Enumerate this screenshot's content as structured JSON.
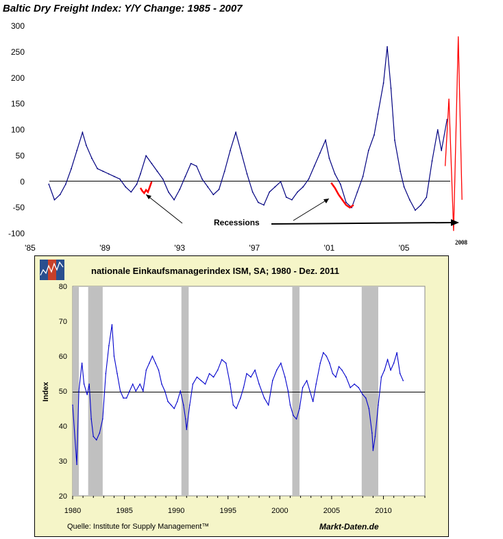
{
  "chart_data": [
    {
      "type": "line",
      "title": "Baltic Dry Freight Index: Y/Y Change: 1985 - 2007",
      "xlabel": "",
      "ylabel": "",
      "ylim": [
        -100,
        300
      ],
      "xlim": [
        1985,
        2007.8
      ],
      "yticks": [
        "300",
        "250",
        "200",
        "150",
        "100",
        "50",
        "0",
        "-50",
        "-100"
      ],
      "xticks": [
        "'85",
        "'89",
        "'93",
        "'97",
        "'01",
        "'05"
      ],
      "series": [
        {
          "name": "Y/Y Change",
          "color": "#000080",
          "x": [
            1986.0,
            1986.3,
            1986.6,
            1986.9,
            1987.2,
            1987.5,
            1987.8,
            1988.0,
            1988.3,
            1988.6,
            1988.9,
            1989.2,
            1989.5,
            1989.8,
            1990.1,
            1990.4,
            1990.7,
            1990.9,
            1991.2,
            1991.5,
            1991.8,
            1992.1,
            1992.4,
            1992.7,
            1993.0,
            1993.3,
            1993.6,
            1993.9,
            1994.2,
            1994.5,
            1994.8,
            1995.1,
            1995.4,
            1995.7,
            1996.0,
            1996.3,
            1996.6,
            1996.9,
            1997.2,
            1997.5,
            1997.8,
            1998.1,
            1998.4,
            1998.7,
            1999.0,
            1999.3,
            1999.6,
            1999.9,
            2000.2,
            2000.5,
            2000.8,
            2001.0,
            2001.3,
            2001.6,
            2001.9,
            2002.2,
            2002.5,
            2002.8,
            2003.1,
            2003.4,
            2003.6,
            2003.9,
            2004.1,
            2004.3,
            2004.5,
            2004.8,
            2005.0,
            2005.3,
            2005.6,
            2005.9,
            2006.2,
            2006.5,
            2006.8,
            2007.0,
            2007.3
          ],
          "y": [
            -5,
            -35,
            -25,
            -5,
            25,
            60,
            95,
            70,
            45,
            25,
            20,
            15,
            10,
            5,
            -10,
            -20,
            -5,
            15,
            50,
            35,
            20,
            5,
            -20,
            -35,
            -15,
            10,
            35,
            30,
            5,
            -10,
            -25,
            -15,
            20,
            60,
            95,
            55,
            15,
            -20,
            -40,
            -45,
            -20,
            -10,
            0,
            -30,
            -35,
            -20,
            -10,
            5,
            30,
            55,
            80,
            45,
            15,
            -5,
            -40,
            -50,
            -20,
            10,
            60,
            90,
            130,
            190,
            260,
            180,
            80,
            20,
            -10,
            -35,
            -55,
            -45,
            -30,
            40,
            100,
            60,
            120
          ]
        },
        {
          "name": "Recessions",
          "color": "#ff0000",
          "segments": [
            {
              "x": [
                1990.9,
                1991.0,
                1991.1,
                1991.2,
                1991.3,
                1991.4,
                1991.5
              ],
              "y": [
                -12,
                -18,
                -22,
                -16,
                -20,
                -10,
                0
              ]
            },
            {
              "x": [
                2001.1,
                2001.3,
                2001.5,
                2001.7,
                2001.9,
                2002.1,
                2002.3
              ],
              "y": [
                -2,
                -12,
                -25,
                -35,
                -45,
                -50,
                -45
              ]
            }
          ]
        },
        {
          "name": "2008 projection",
          "color": "#ff0000",
          "x": [
            2007.2,
            2007.4,
            2007.65,
            2007.9,
            2008.1
          ],
          "y": [
            30,
            160,
            -95,
            280,
            -35
          ]
        }
      ],
      "annotations": [
        "Recessions",
        "2008"
      ]
    },
    {
      "type": "line",
      "title": "nationale Einkaufsmanagerindex ISM, SA; 1980 - Dez. 2011",
      "xlabel": "",
      "ylabel": "Index",
      "ylim": [
        20,
        80
      ],
      "xlim": [
        1980,
        2014
      ],
      "yticks": [
        "80",
        "70",
        "60",
        "50",
        "40",
        "30",
        "20"
      ],
      "xticks": [
        "1980",
        "1985",
        "1990",
        "1995",
        "2000",
        "2005",
        "2010"
      ],
      "recession_bands": [
        [
          1980.0,
          1980.6
        ],
        [
          1981.5,
          1982.9
        ],
        [
          1990.5,
          1991.2
        ],
        [
          2001.2,
          2001.9
        ],
        [
          2007.9,
          2009.5
        ]
      ],
      "series": [
        {
          "name": "ISM",
          "color": "#0000cc",
          "x": [
            1980.0,
            1980.4,
            1980.6,
            1980.9,
            1981.1,
            1981.4,
            1981.6,
            1981.8,
            1982.0,
            1982.3,
            1982.6,
            1982.9,
            1983.2,
            1983.5,
            1983.8,
            1984.0,
            1984.3,
            1984.6,
            1984.9,
            1985.2,
            1985.5,
            1985.8,
            1986.1,
            1986.5,
            1986.8,
            1987.1,
            1987.4,
            1987.7,
            1988.0,
            1988.3,
            1988.6,
            1988.9,
            1989.2,
            1989.5,
            1989.8,
            1990.1,
            1990.4,
            1990.7,
            1990.9,
            1991.0,
            1991.3,
            1991.6,
            1992.0,
            1992.4,
            1992.8,
            1993.2,
            1993.6,
            1994.0,
            1994.4,
            1994.8,
            1995.2,
            1995.5,
            1995.8,
            1996.2,
            1996.5,
            1996.8,
            1997.2,
            1997.6,
            1998.0,
            1998.5,
            1998.9,
            1999.3,
            1999.7,
            2000.1,
            2000.5,
            2000.8,
            2001.0,
            2001.3,
            2001.6,
            2001.9,
            2002.2,
            2002.6,
            2002.9,
            2003.2,
            2003.5,
            2003.9,
            2004.2,
            2004.5,
            2004.8,
            2005.1,
            2005.4,
            2005.7,
            2006.0,
            2006.4,
            2006.8,
            2007.2,
            2007.6,
            2008.0,
            2008.3,
            2008.6,
            2008.9,
            2009.0,
            2009.2,
            2009.5,
            2009.8,
            2010.1,
            2010.4,
            2010.7,
            2011.0,
            2011.3,
            2011.6,
            2011.9
          ],
          "y": [
            46,
            29,
            50,
            58,
            52,
            49,
            52,
            42,
            37,
            36,
            38,
            42,
            55,
            63,
            69,
            60,
            55,
            50,
            48,
            48,
            50,
            52,
            50,
            52,
            50,
            56,
            58,
            60,
            58,
            56,
            52,
            50,
            47,
            46,
            45,
            47,
            50,
            46,
            42,
            39,
            46,
            52,
            54,
            53,
            52,
            55,
            54,
            56,
            59,
            58,
            52,
            46,
            45,
            48,
            51,
            55,
            54,
            56,
            52,
            48,
            46,
            53,
            56,
            58,
            54,
            50,
            46,
            43,
            42,
            45,
            51,
            53,
            50,
            47,
            52,
            58,
            61,
            60,
            58,
            55,
            54,
            57,
            56,
            54,
            51,
            52,
            51,
            49,
            48,
            45,
            38,
            33,
            37,
            46,
            54,
            56,
            59,
            56,
            58,
            61,
            55,
            53
          ]
        }
      ],
      "source_text": "Quelle: Institute for Supply Management™",
      "brand_text": "Markt-Daten.de"
    }
  ]
}
